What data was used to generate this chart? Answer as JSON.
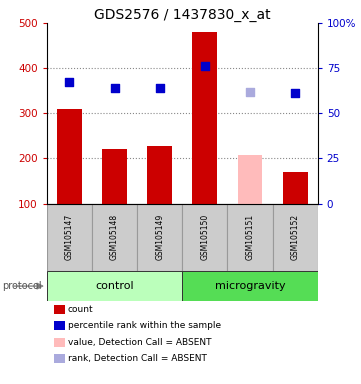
{
  "title": "GDS2576 / 1437830_x_at",
  "samples": [
    "GSM105147",
    "GSM105148",
    "GSM105149",
    "GSM105150",
    "GSM105151",
    "GSM105152"
  ],
  "bar_values": [
    310,
    220,
    228,
    480,
    207,
    170
  ],
  "bar_colors": [
    "#cc0000",
    "#cc0000",
    "#cc0000",
    "#cc0000",
    "#ffbbbb",
    "#cc0000"
  ],
  "dot_values": [
    370,
    355,
    355,
    405,
    347,
    345
  ],
  "dot_colors": [
    "#0000cc",
    "#0000cc",
    "#0000cc",
    "#0000cc",
    "#aaaadd",
    "#0000cc"
  ],
  "ylim_left": [
    100,
    500
  ],
  "yticks_left": [
    100,
    200,
    300,
    400,
    500
  ],
  "ytick_labels_left": [
    "100",
    "200",
    "300",
    "400",
    "500"
  ],
  "yticks_right_vals": [
    0,
    25,
    50,
    75,
    100
  ],
  "ytick_labels_right": [
    "0",
    "25",
    "50",
    "75",
    "100%"
  ],
  "groups": [
    {
      "label": "control",
      "start": 0,
      "end": 3,
      "color": "#bbffbb"
    },
    {
      "label": "microgravity",
      "start": 3,
      "end": 6,
      "color": "#55dd55"
    }
  ],
  "protocol_label": "protocol",
  "legend_items": [
    {
      "color": "#cc0000",
      "label": "count"
    },
    {
      "color": "#0000cc",
      "label": "percentile rank within the sample"
    },
    {
      "color": "#ffbbbb",
      "label": "value, Detection Call = ABSENT"
    },
    {
      "color": "#aaaadd",
      "label": "rank, Detection Call = ABSENT"
    }
  ],
  "bar_width": 0.55,
  "dot_size": 40,
  "grid_color": "#888888",
  "sample_box_color": "#cccccc",
  "title_fontsize": 10,
  "axis_label_color_left": "#cc0000",
  "axis_label_color_right": "#0000cc"
}
